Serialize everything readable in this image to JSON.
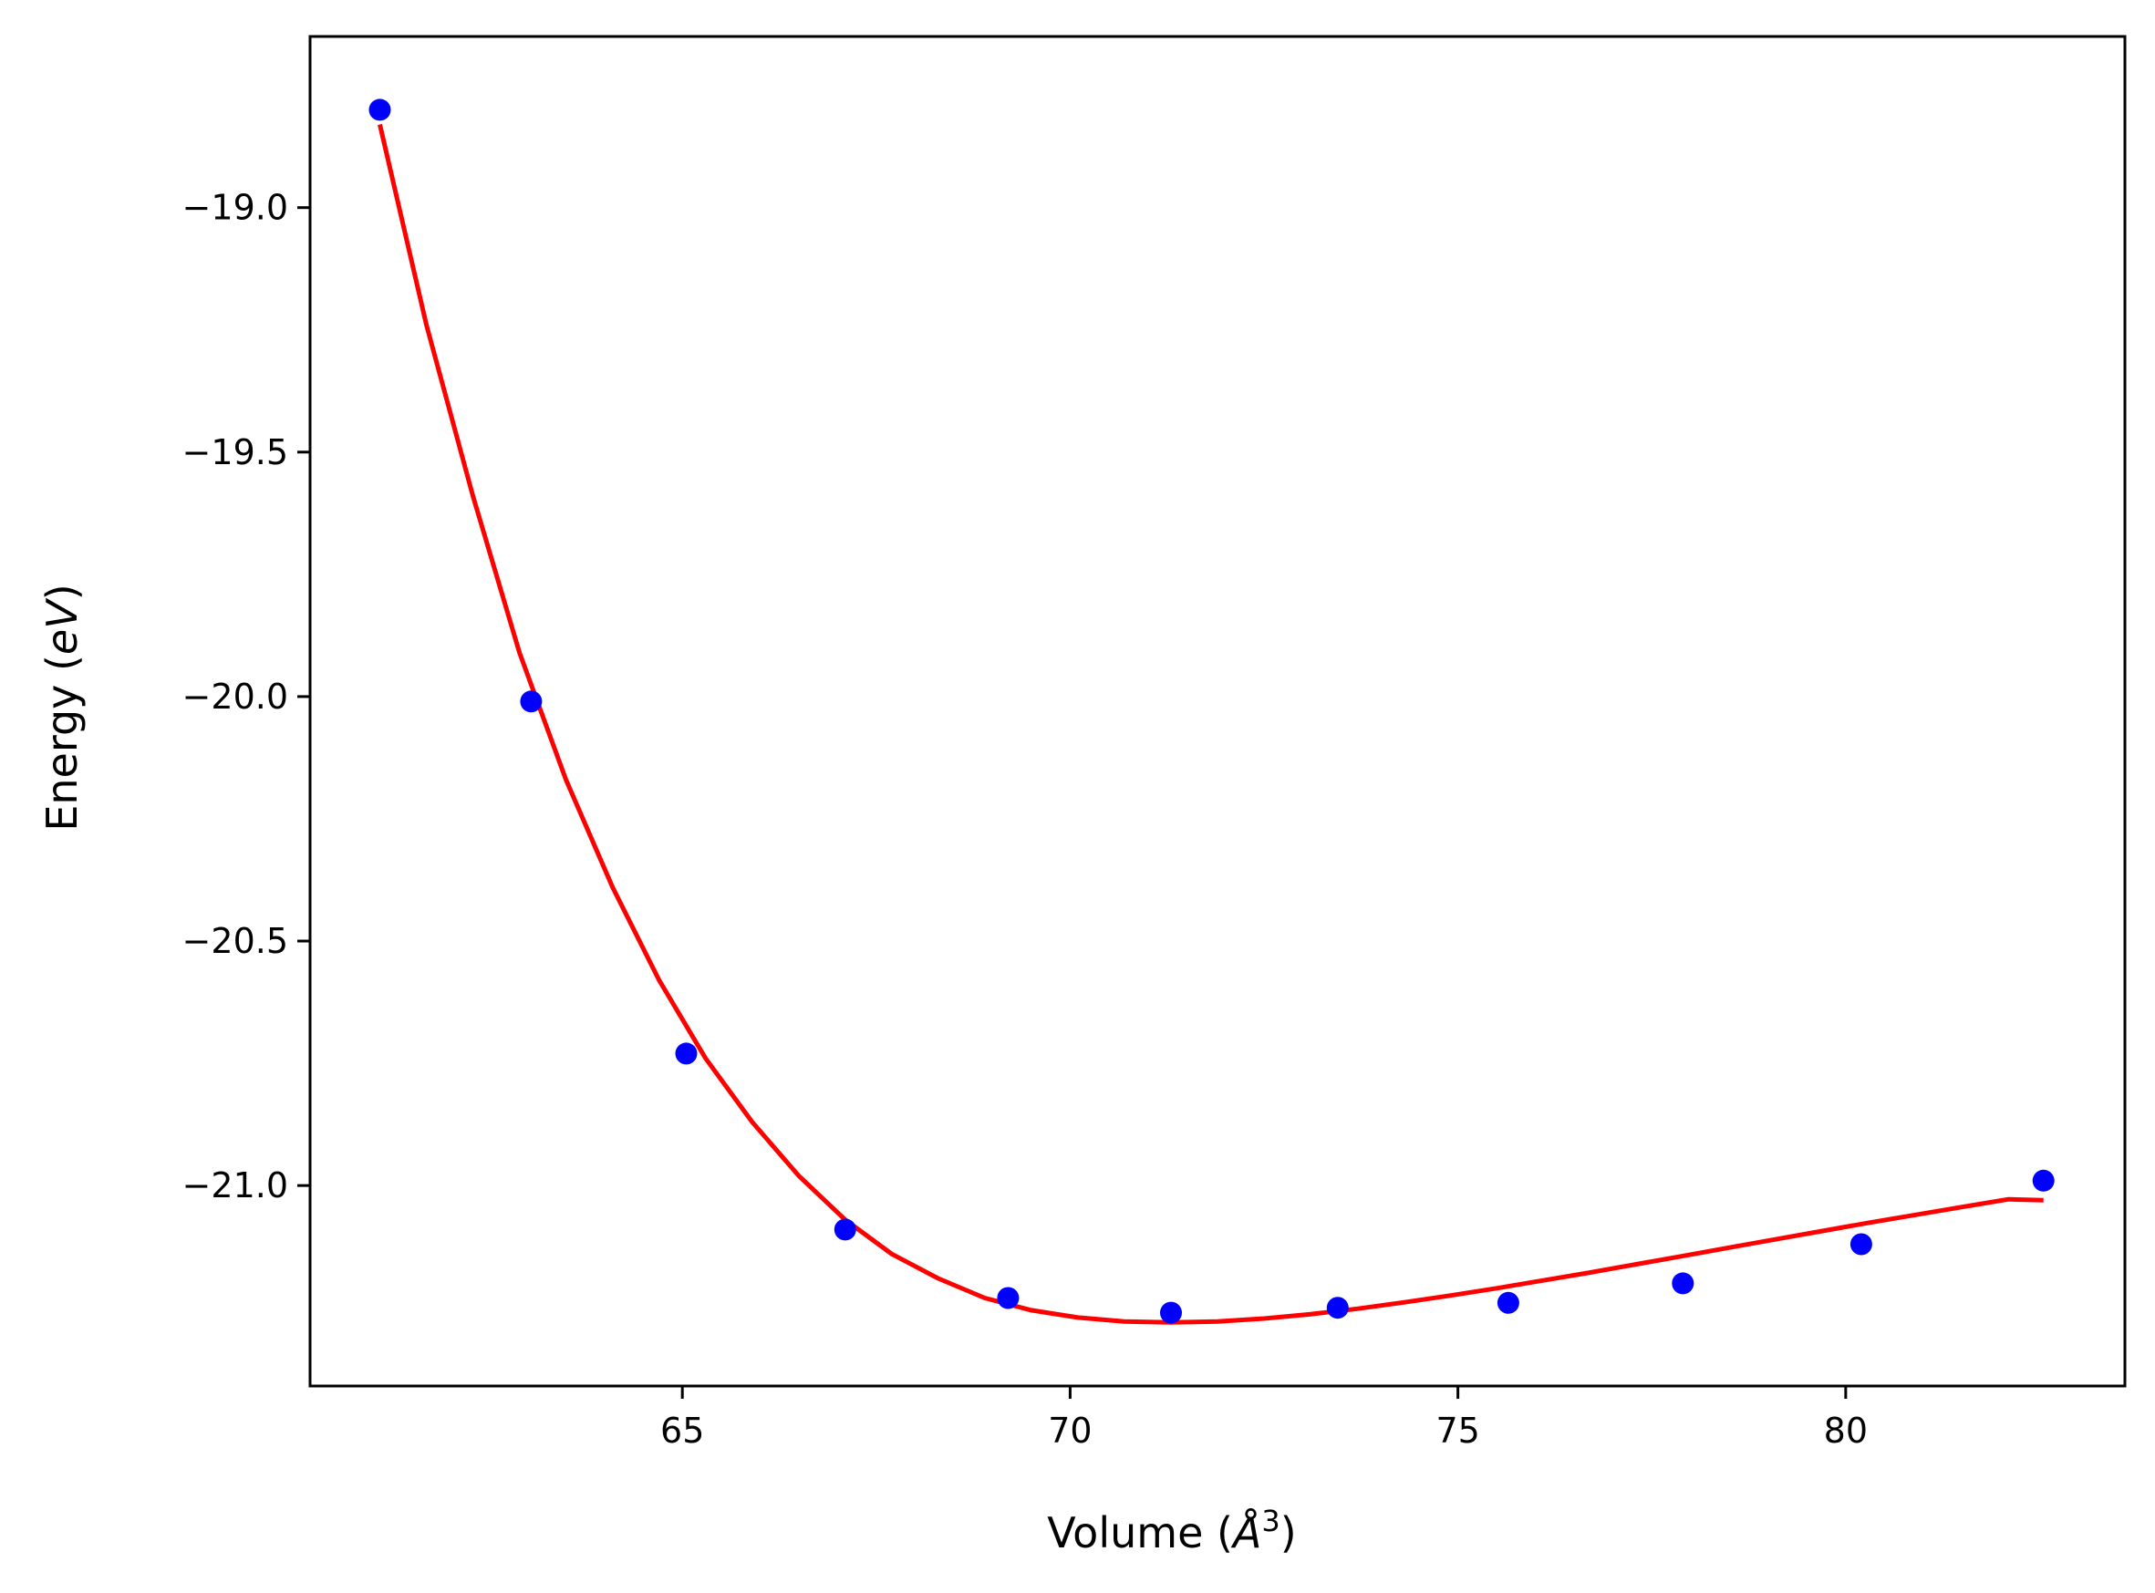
{
  "chart_data": {
    "type": "scatter",
    "xlabel_main": "Volume (",
    "xlabel_sym": "Å",
    "xlabel_sup": "3",
    "xlabel_close": ")",
    "ylabel_main": "Energy (",
    "ylabel_sym": "eV",
    "ylabel_close": ")",
    "xlim": [
      60.2,
      83.6
    ],
    "ylim": [
      -21.41,
      -18.65
    ],
    "xticks": [
      65,
      70,
      75,
      80
    ],
    "xtick_labels": [
      "65",
      "70",
      "75",
      "80"
    ],
    "yticks": [
      -19.0,
      -19.5,
      -20.0,
      -20.5,
      -21.0
    ],
    "ytick_labels": [
      "−19.0",
      "−19.5",
      "−20.0",
      "−20.5",
      "−21.0"
    ],
    "grid": false,
    "series": [
      {
        "kind": "points",
        "color": "#0000ff",
        "x": [
          61.1,
          63.05,
          65.05,
          67.1,
          69.2,
          71.3,
          73.45,
          75.65,
          77.9,
          80.2,
          82.55
        ],
        "y": [
          -18.8,
          -20.01,
          -20.73,
          -21.09,
          -21.23,
          -21.26,
          -21.25,
          -21.24,
          -21.2,
          -21.12,
          -20.99
        ]
      },
      {
        "kind": "fit-curve",
        "color": "#ff0000",
        "x": [
          61.1,
          61.7,
          62.3,
          62.9,
          63.5,
          64.1,
          64.7,
          65.3,
          65.9,
          66.5,
          67.1,
          67.7,
          68.3,
          68.9,
          69.5,
          70.1,
          70.7,
          71.3,
          71.9,
          72.5,
          73.1,
          73.7,
          74.3,
          74.9,
          75.5,
          76.1,
          76.7,
          77.3,
          77.9,
          78.5,
          79.1,
          79.7,
          80.3,
          80.9,
          81.5,
          82.1,
          82.55
        ],
        "y": [
          -18.83,
          -19.24,
          -19.59,
          -19.91,
          -20.17,
          -20.39,
          -20.58,
          -20.74,
          -20.87,
          -20.98,
          -21.07,
          -21.14,
          -21.19,
          -21.23,
          -21.255,
          -21.27,
          -21.278,
          -21.28,
          -21.278,
          -21.272,
          -21.263,
          -21.252,
          -21.239,
          -21.225,
          -21.21,
          -21.194,
          -21.178,
          -21.161,
          -21.144,
          -21.127,
          -21.11,
          -21.093,
          -21.076,
          -21.06,
          -21.044,
          -21.028,
          -21.03
        ]
      }
    ]
  }
}
